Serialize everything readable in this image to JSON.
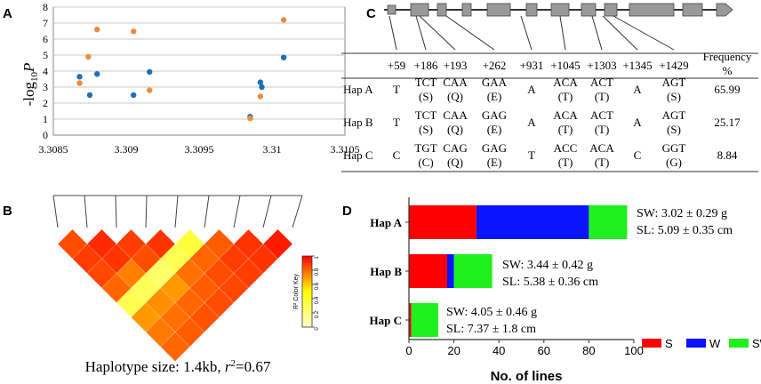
{
  "chart_data": [
    {
      "panel": "A",
      "type": "scatter",
      "ylabel_prefix": "-log",
      "ylabel_sub": "10",
      "ylabel_var": "P",
      "xlim": [
        3.3085,
        3.3105
      ],
      "ylim": [
        0,
        8
      ],
      "xticks": [
        "3.3085",
        "3.309",
        "3.3095",
        "3.31",
        "3.3105"
      ],
      "yticks": [
        "0",
        "1",
        "2",
        "3",
        "4",
        "5",
        "6",
        "7",
        "8"
      ],
      "grid": "horizontal",
      "series": [
        {
          "name": "blue",
          "color": "#1f6fb5",
          "points": [
            [
              3.30868,
              3.65
            ],
            [
              3.30875,
              2.5
            ],
            [
              3.3088,
              3.82
            ],
            [
              3.30905,
              2.5
            ],
            [
              3.30916,
              3.95
            ],
            [
              3.30985,
              1.15
            ],
            [
              3.30992,
              3.3
            ],
            [
              3.30993,
              3.0
            ],
            [
              3.31008,
              4.85
            ]
          ]
        },
        {
          "name": "orange",
          "color": "#f08a3c",
          "points": [
            [
              3.30868,
              3.25
            ],
            [
              3.30874,
              4.9
            ],
            [
              3.3088,
              6.6
            ],
            [
              3.30905,
              6.48
            ],
            [
              3.30916,
              2.8
            ],
            [
              3.30985,
              1.05
            ],
            [
              3.30992,
              2.42
            ],
            [
              3.31008,
              7.2
            ]
          ]
        }
      ]
    },
    {
      "panel": "B",
      "type": "heatmap",
      "caption_main": "Haplotype size: 1.4kb, ",
      "caption_r": "r",
      "caption_sup": "2",
      "caption_val": "=0.67",
      "legend_title": "R² Color Key",
      "legend_ticks": [
        "0",
        "0.2",
        "0.4",
        "0.6",
        "0.8",
        "1"
      ],
      "n_snps": 9,
      "ld_r2": [
        [
          0.85,
          0.92,
          0.88,
          0.9,
          0.35,
          0.82,
          0.9,
          0.95
        ],
        [
          0.88,
          0.9,
          0.85,
          0.3,
          0.8,
          0.88,
          0.9
        ],
        [
          0.86,
          0.75,
          0.25,
          0.78,
          0.85,
          0.88
        ],
        [
          0.8,
          0.28,
          0.7,
          0.82,
          0.86
        ],
        [
          0.3,
          0.72,
          0.8,
          0.85
        ],
        [
          0.7,
          0.78,
          0.84
        ],
        [
          0.76,
          0.82
        ],
        [
          0.8
        ]
      ]
    },
    {
      "panel": "C",
      "type": "table",
      "positions": [
        "+59",
        "+186",
        "+193",
        "+262",
        "+931",
        "+1045",
        "+1303",
        "+1345",
        "+1429"
      ],
      "freq_header": [
        "Frequency",
        "%"
      ],
      "rows": [
        {
          "hap": "Hap A",
          "cells": [
            [
              "T"
            ],
            [
              "TCT",
              "(S)"
            ],
            [
              "CAA",
              "(Q)"
            ],
            [
              "GAA",
              "(E)"
            ],
            [
              "A"
            ],
            [
              "ACA",
              "(T)"
            ],
            [
              "ACT",
              "(T)"
            ],
            [
              "A"
            ],
            [
              "AGT",
              "(S)"
            ]
          ],
          "freq": "65.99"
        },
        {
          "hap": "Hap B",
          "cells": [
            [
              "T"
            ],
            [
              "TCT",
              "(S)"
            ],
            [
              "CAA",
              "(Q)"
            ],
            [
              "GAG",
              "(E)"
            ],
            [
              "A"
            ],
            [
              "ACA",
              "(T)"
            ],
            [
              "ACT",
              "(T)"
            ],
            [
              "A"
            ],
            [
              "AGT",
              "(S)"
            ]
          ],
          "freq": "25.17"
        },
        {
          "hap": "Hap C",
          "cells": [
            [
              "C"
            ],
            [
              "TGT",
              "(C)"
            ],
            [
              "CAG",
              "(Q)"
            ],
            [
              "GAG",
              "(E)"
            ],
            [
              "T"
            ],
            [
              "ACC",
              "(T)"
            ],
            [
              "ACA",
              "(T)"
            ],
            [
              "C"
            ],
            [
              "GGT",
              "(G)"
            ]
          ],
          "freq": "8.84"
        }
      ]
    },
    {
      "panel": "D",
      "type": "bar",
      "orientation": "horizontal",
      "stacked": true,
      "categories": [
        "Hap A",
        "Hap B",
        "Hap C"
      ],
      "series": [
        {
          "name": "S",
          "color": "#ff0000",
          "values": [
            30,
            17,
            1
          ]
        },
        {
          "name": "W",
          "color": "#0a14ff",
          "values": [
            50,
            3,
            0
          ]
        },
        {
          "name": "SW",
          "color": "#1ef01e",
          "values": [
            17,
            17,
            12
          ]
        }
      ],
      "xlim": [
        0,
        100
      ],
      "xticks": [
        "0",
        "20",
        "40",
        "60",
        "80",
        "100"
      ],
      "xlabel": "No. of lines",
      "annotations": [
        [
          "SW: 3.02 ± 0.29 g",
          "SL: 5.09 ± 0.35 cm"
        ],
        [
          "SW: 3.44 ± 0.42 g",
          "SL: 5.38 ± 0.36 cm"
        ],
        [
          "SW: 4.05 ± 0.46 g",
          "SL: 7.37 ± 1.8 cm"
        ]
      ],
      "legend": "bottom-right"
    }
  ],
  "panel_labels": {
    "a": "A",
    "b": "B",
    "c": "C",
    "d": "D"
  }
}
